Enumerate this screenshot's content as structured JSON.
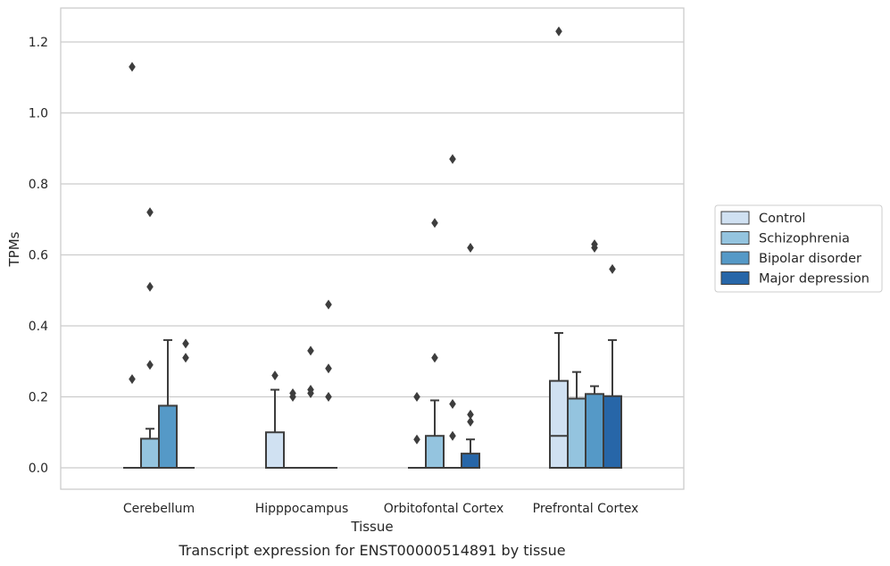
{
  "chart_data": {
    "type": "box",
    "xlabel": "Tissue",
    "ylabel": "TPMs",
    "caption": "Transcript expression for ENST00000514891 by tissue",
    "ylim": [
      -0.06,
      1.29
    ],
    "yticks": [
      0.0,
      0.2,
      0.4,
      0.6,
      0.8,
      1.0,
      1.2
    ],
    "ytick_labels": [
      "0.0",
      "0.2",
      "0.4",
      "0.6",
      "0.8",
      "1.0",
      "1.2"
    ],
    "grid": "horizontal",
    "legend_position": "right",
    "categories": [
      "Cerebellum",
      "Hipppocampus",
      "Orbitofontal Cortex",
      "Prefrontal Cortex"
    ],
    "series": [
      {
        "name": "Control",
        "color": "#d0e1f2",
        "boxes": [
          {
            "q1": 0,
            "median": 0,
            "q3": 0,
            "whisker_low": 0,
            "whisker_high": 0,
            "outliers": [
              0.25,
              1.13
            ]
          },
          {
            "q1": 0,
            "median": 0,
            "q3": 0.1,
            "whisker_low": 0,
            "whisker_high": 0.22,
            "outliers": [
              0.26
            ]
          },
          {
            "q1": 0,
            "median": 0,
            "q3": 0,
            "whisker_low": 0,
            "whisker_high": 0,
            "outliers": [
              0.08,
              0.2
            ]
          },
          {
            "q1": 0,
            "median": 0.09,
            "q3": 0.245,
            "whisker_low": 0,
            "whisker_high": 0.38,
            "outliers": [
              1.23
            ]
          }
        ]
      },
      {
        "name": "Schizophrenia",
        "color": "#94c4df",
        "boxes": [
          {
            "q1": 0,
            "median": 0,
            "q3": 0.082,
            "whisker_low": 0,
            "whisker_high": 0.11,
            "outliers": [
              0.29,
              0.51,
              0.72
            ]
          },
          {
            "q1": 0,
            "median": 0,
            "q3": 0,
            "whisker_low": 0,
            "whisker_high": 0,
            "outliers": [
              0.2,
              0.21
            ]
          },
          {
            "q1": 0,
            "median": 0,
            "q3": 0.09,
            "whisker_low": 0,
            "whisker_high": 0.19,
            "outliers": [
              0.31,
              0.69
            ]
          },
          {
            "q1": 0,
            "median": 0,
            "q3": 0.195,
            "whisker_low": 0,
            "whisker_high": 0.27,
            "outliers": []
          }
        ]
      },
      {
        "name": "Bipolar disorder",
        "color": "#5599c7",
        "boxes": [
          {
            "q1": 0,
            "median": 0,
            "q3": 0.175,
            "whisker_low": 0,
            "whisker_high": 0.36,
            "outliers": []
          },
          {
            "q1": 0,
            "median": 0,
            "q3": 0,
            "whisker_low": 0,
            "whisker_high": 0,
            "outliers": [
              0.21,
              0.22,
              0.33
            ]
          },
          {
            "q1": 0,
            "median": 0,
            "q3": 0,
            "whisker_low": 0,
            "whisker_high": 0,
            "outliers": [
              0.09,
              0.18,
              0.87
            ]
          },
          {
            "q1": 0,
            "median": 0,
            "q3": 0.208,
            "whisker_low": 0,
            "whisker_high": 0.23,
            "outliers": [
              0.62,
              0.63
            ]
          }
        ]
      },
      {
        "name": "Major depression",
        "color": "#2766a8",
        "boxes": [
          {
            "q1": 0,
            "median": 0,
            "q3": 0,
            "whisker_low": 0,
            "whisker_high": 0,
            "outliers": [
              0.31,
              0.35
            ]
          },
          {
            "q1": 0,
            "median": 0,
            "q3": 0,
            "whisker_low": 0,
            "whisker_high": 0,
            "outliers": [
              0.2,
              0.28,
              0.46
            ]
          },
          {
            "q1": 0,
            "median": 0,
            "q3": 0.04,
            "whisker_low": 0,
            "whisker_high": 0.08,
            "outliers": [
              0.13,
              0.15,
              0.62
            ]
          },
          {
            "q1": 0,
            "median": 0,
            "q3": 0.202,
            "whisker_low": 0,
            "whisker_high": 0.36,
            "outliers": [
              0.56
            ]
          }
        ]
      }
    ]
  }
}
